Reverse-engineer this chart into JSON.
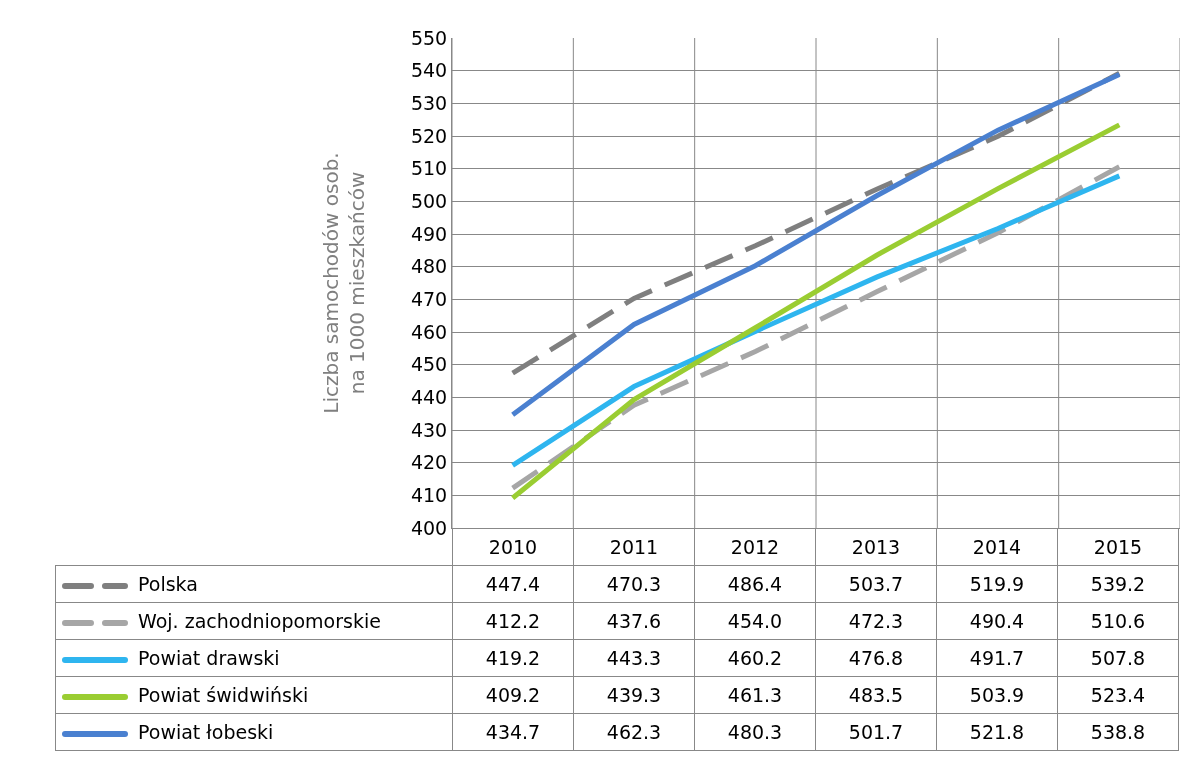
{
  "chart_data": {
    "type": "line",
    "ylabel": "Liczba samochodów osob.\nna 1000 mieszkańców",
    "categories": [
      "2010",
      "2011",
      "2012",
      "2013",
      "2014",
      "2015"
    ],
    "ylim": [
      400,
      550
    ],
    "yticks": [
      400,
      410,
      420,
      430,
      440,
      450,
      460,
      470,
      480,
      490,
      500,
      510,
      520,
      530,
      540,
      550
    ],
    "grid": true,
    "legend": "bottom",
    "marker": "none",
    "series": [
      {
        "name": "Polska",
        "color": "#7f7f7f",
        "line_style": "dashed",
        "values": [
          447.4,
          470.3,
          486.4,
          503.7,
          519.9,
          539.2
        ],
        "value_labels": [
          "447.4",
          "470.3",
          "486.4",
          "503.7",
          "519.9",
          "539.2"
        ]
      },
      {
        "name": "Woj. zachodniopomorskie",
        "color": "#a6a6a6",
        "line_style": "dashed",
        "values": [
          412.2,
          437.6,
          454.0,
          472.3,
          490.4,
          510.6
        ],
        "value_labels": [
          "412.2",
          "437.6",
          "454.0",
          "472.3",
          "490.4",
          "510.6"
        ]
      },
      {
        "name": "Powiat drawski",
        "color": "#2eb5ef",
        "line_style": "solid",
        "values": [
          419.2,
          443.3,
          460.2,
          476.8,
          491.7,
          507.8
        ],
        "value_labels": [
          "419.2",
          "443.3",
          "460.2",
          "476.8",
          "491.7",
          "507.8"
        ]
      },
      {
        "name": "Powiat świdwiński",
        "color": "#9acd32",
        "line_style": "solid",
        "values": [
          409.2,
          439.3,
          461.3,
          483.5,
          503.9,
          523.4
        ],
        "value_labels": [
          "409.2",
          "439.3",
          "461.3",
          "483.5",
          "503.9",
          "523.4"
        ]
      },
      {
        "name": "Powiat łobeski",
        "color": "#4a80d0",
        "line_style": "solid",
        "values": [
          434.7,
          462.3,
          480.3,
          501.7,
          521.8,
          538.8
        ],
        "value_labels": [
          "434.7",
          "462.3",
          "480.3",
          "501.7",
          "521.8",
          "538.8"
        ]
      }
    ]
  }
}
